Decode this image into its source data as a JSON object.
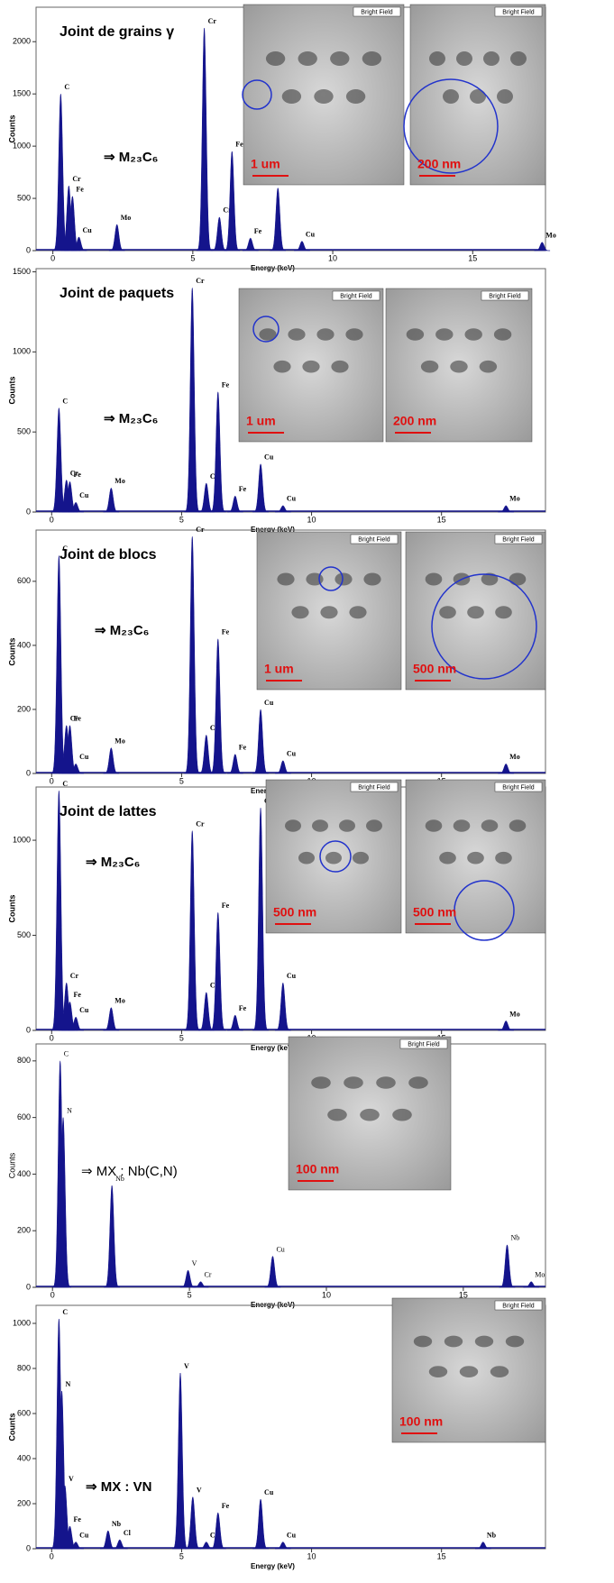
{
  "chart_data": [
    {
      "type": "area",
      "title": "Joint de grains γ",
      "annotation": "⇒ M₂₃C₆",
      "xlabel": "Energy (keV)",
      "ylabel": "Counts",
      "color": "#14148c",
      "x": [
        0.28,
        0.57,
        0.7,
        0.93,
        2.29,
        5.41,
        5.95,
        6.4,
        7.06,
        8.04,
        8.9,
        17.48
      ],
      "values": [
        1500,
        620,
        520,
        130,
        250,
        2130,
        320,
        950,
        120,
        600,
        90,
        80
      ],
      "peak_labels": [
        "C",
        "Cr",
        "Fe",
        "Cu",
        "Mo",
        "Cr",
        "Cr",
        "Fe",
        "Fe",
        "Cu",
        "Cu",
        "Mo"
      ],
      "xlim": [
        -0.6,
        17.6
      ],
      "xticks": [
        0,
        5,
        10,
        15
      ],
      "ylim": [
        0,
        2330
      ],
      "yticks": [
        0,
        500,
        1000,
        1500,
        2000
      ],
      "images": [
        {
          "label": "Bright Field",
          "scale": "1 um"
        },
        {
          "label": "Bright Field",
          "scale": "200 nm"
        }
      ]
    },
    {
      "type": "area",
      "title": "Joint de paquets",
      "annotation": "⇒ M₂₃C₆",
      "xlabel": "Energy (keV)",
      "ylabel": "Counts",
      "color": "#14148c",
      "x": [
        0.28,
        0.57,
        0.7,
        0.93,
        2.29,
        5.41,
        5.95,
        6.4,
        7.06,
        8.04,
        8.9,
        17.48
      ],
      "values": [
        650,
        200,
        190,
        60,
        150,
        1400,
        180,
        750,
        100,
        300,
        40,
        40
      ],
      "peak_labels": [
        "C",
        "Cr",
        "Fe",
        "Cu",
        "Mo",
        "Cr",
        "Cr",
        "Fe",
        "Fe",
        "Cu",
        "Cu",
        "Mo"
      ],
      "xlim": [
        -0.6,
        19.0
      ],
      "xticks": [
        0,
        5,
        10,
        15
      ],
      "ylim": [
        0,
        1520
      ],
      "yticks": [
        0,
        500,
        1000,
        1500
      ],
      "images": [
        {
          "label": "Bright Field",
          "scale": "1 um"
        },
        {
          "label": "Bright Field",
          "scale": "200 nm"
        }
      ]
    },
    {
      "type": "area",
      "title": "Joint de blocs",
      "annotation": "⇒ M₂₃C₆",
      "xlabel": "Energy (keV)",
      "ylabel": "Counts",
      "color": "#14148c",
      "x": [
        0.28,
        0.57,
        0.7,
        0.93,
        2.29,
        5.41,
        5.95,
        6.4,
        7.06,
        8.04,
        8.9,
        17.48
      ],
      "values": [
        680,
        150,
        150,
        30,
        80,
        740,
        120,
        420,
        60,
        200,
        40,
        30
      ],
      "peak_labels": [
        "C",
        "Cr",
        "Fe",
        "Cu",
        "Mo",
        "Cr",
        "Cr",
        "Fe",
        "Fe",
        "Cu",
        "Cu",
        "Mo"
      ],
      "xlim": [
        -0.6,
        19.0
      ],
      "xticks": [
        0,
        5,
        10,
        15
      ],
      "ylim": [
        0,
        760
      ],
      "yticks": [
        0,
        200,
        400,
        600
      ],
      "images": [
        {
          "label": "Bright Field",
          "scale": "1 um"
        },
        {
          "label": "Bright Field",
          "scale": "500 nm"
        }
      ]
    },
    {
      "type": "area",
      "title": "Joint de lattes",
      "annotation": "⇒ M₂₃C₆",
      "xlabel": "Energy (keV)",
      "ylabel": "Counts",
      "color": "#14148c",
      "x": [
        0.28,
        0.57,
        0.7,
        0.93,
        2.29,
        5.41,
        5.95,
        6.4,
        7.06,
        8.04,
        8.9,
        17.48
      ],
      "values": [
        1260,
        250,
        150,
        70,
        120,
        1050,
        200,
        620,
        80,
        1170,
        250,
        50
      ],
      "peak_labels": [
        "C",
        "Cr",
        "Fe",
        "Cu",
        "Mo",
        "Cr",
        "Cr",
        "Fe",
        "Fe",
        "Cu",
        "Cu",
        "Mo"
      ],
      "xlim": [
        -0.6,
        19.0
      ],
      "xticks": [
        0,
        5,
        10,
        15
      ],
      "ylim": [
        0,
        1280
      ],
      "yticks": [
        0,
        500,
        1000
      ],
      "images": [
        {
          "label": "Bright Field",
          "scale": "500 nm"
        },
        {
          "label": "Bright Field",
          "scale": "500 nm"
        }
      ]
    },
    {
      "type": "area",
      "annotation": "⇒ MX : Nb(C,N)",
      "xlabel": "Energy (keV)",
      "ylabel": "Counts",
      "color": "#14148c",
      "x": [
        0.28,
        0.39,
        2.17,
        4.95,
        5.41,
        8.04,
        16.6,
        17.48
      ],
      "values": [
        800,
        600,
        360,
        60,
        20,
        110,
        150,
        20
      ],
      "peak_labels": [
        "C",
        "N",
        "Nb",
        "V",
        "Cr",
        "Cu",
        "Nb",
        "Mo"
      ],
      "xlim": [
        -0.6,
        18.0
      ],
      "xticks": [
        0,
        5,
        10,
        15
      ],
      "ylim": [
        0,
        860
      ],
      "yticks": [
        0,
        200,
        400,
        600,
        800
      ],
      "images": [
        {
          "label": "Bright Field",
          "scale": "100 nm"
        }
      ]
    },
    {
      "type": "area",
      "annotation": "⇒ MX : VN",
      "xlabel": "Energy (keV)",
      "ylabel": "Counts",
      "color": "#14148c",
      "x": [
        0.28,
        0.39,
        0.51,
        0.7,
        0.93,
        2.17,
        2.62,
        4.95,
        5.43,
        5.95,
        6.4,
        8.04,
        8.9,
        16.6
      ],
      "values": [
        1020,
        700,
        280,
        100,
        30,
        80,
        40,
        780,
        230,
        30,
        160,
        220,
        30,
        30
      ],
      "peak_labels": [
        "C",
        "N",
        "V",
        "Fe",
        "Cu",
        "Nb",
        "Cl",
        "V",
        "V",
        "Cr",
        "Fe",
        "Cu",
        "Cu",
        "Nb"
      ],
      "xlim": [
        -0.6,
        19.0
      ],
      "xticks": [
        0,
        5,
        10,
        15
      ],
      "ylim": [
        0,
        1080
      ],
      "yticks": [
        0,
        200,
        400,
        600,
        800,
        1000
      ],
      "images": [
        {
          "label": "Bright Field",
          "scale": "100 nm"
        }
      ]
    }
  ]
}
